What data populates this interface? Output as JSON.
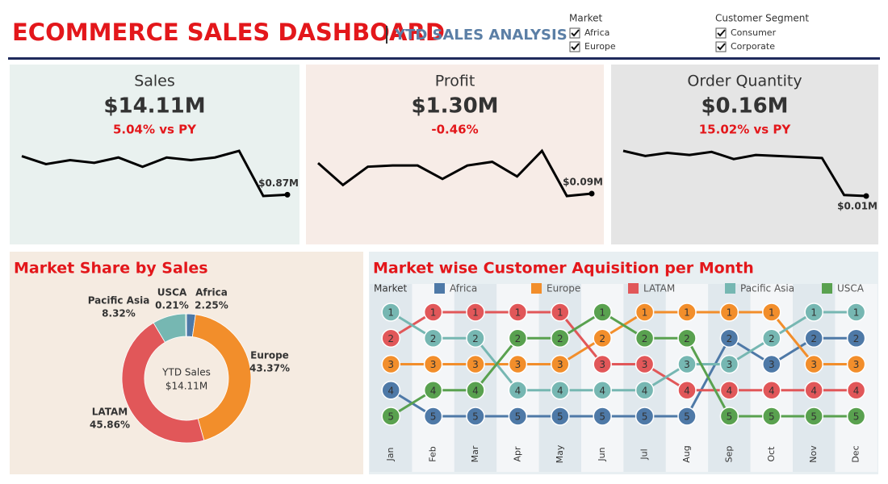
{
  "header": {
    "title": "ECOMMERCE SALES DASHBOARD",
    "subtitle": "YTD SALES ANALYSIS"
  },
  "filters": [
    {
      "label": "Market",
      "options": [
        "Africa",
        "Europe"
      ]
    },
    {
      "label": "Customer Segment",
      "options": [
        "Consumer",
        "Corporate"
      ]
    }
  ],
  "kpis": [
    {
      "title": "Sales",
      "value": "$14.11M",
      "change": "5.04% vs PY"
    },
    {
      "title": "Profit",
      "value": "$1.30M",
      "change": "-0.46%"
    },
    {
      "title": "Order Quantity",
      "value": "$0.16M",
      "change": "15.02% vs PY"
    }
  ],
  "chart_data": [
    {
      "type": "line",
      "color": "#000000",
      "values": [
        1.16,
        1.1,
        1.13,
        1.11,
        1.15,
        1.08,
        1.15,
        1.13,
        1.15,
        1.2,
        0.86,
        0.87
      ],
      "value_labels": [
        null,
        null,
        null,
        null,
        null,
        null,
        null,
        null,
        null,
        null,
        null,
        "$0.87M"
      ]
    },
    {
      "type": "line",
      "color": "#000000",
      "values": [
        0.115,
        0.097,
        0.112,
        0.113,
        0.113,
        0.102,
        0.113,
        0.116,
        0.104,
        0.125,
        0.088,
        0.09
      ],
      "value_labels": [
        null,
        null,
        null,
        null,
        null,
        null,
        null,
        null,
        null,
        null,
        null,
        "$0.09M"
      ]
    },
    {
      "type": "line",
      "color": "#000000",
      "values": [
        0.0145,
        0.014,
        0.0143,
        0.0141,
        0.0144,
        0.0137,
        0.0141,
        0.014,
        0.0139,
        0.0138,
        0.0102,
        0.0101
      ],
      "value_labels": [
        null,
        null,
        null,
        null,
        null,
        null,
        null,
        null,
        null,
        null,
        null,
        "$0.01M"
      ]
    },
    {
      "type": "donut",
      "title": "Market Share by Sales",
      "center_title": "YTD Sales",
      "center_value": "$14.11M",
      "categories": [
        "Africa",
        "Europe",
        "LATAM",
        "Pacific Asia",
        "USCA"
      ],
      "values": [
        2.25,
        43.37,
        45.86,
        8.32,
        0.21
      ],
      "value_labels": [
        "2.25%",
        "43.37%",
        "45.86%",
        "8.32%",
        "0.21%"
      ],
      "colors": [
        "#4e79a7",
        "#f28e2b",
        "#e15759",
        "#76b7b2",
        "#59a14f"
      ]
    },
    {
      "type": "bump",
      "title": "Market wise Customer Aquisition per Month",
      "legend_title": "Market",
      "categories": [
        "Jan",
        "Feb",
        "Mar",
        "Apr",
        "May",
        "Jun",
        "Jul",
        "Aug",
        "Sep",
        "Oct",
        "Nov",
        "Dec"
      ],
      "ylim": [
        5,
        1
      ],
      "series": [
        {
          "name": "Africa",
          "color": "#4e79a7",
          "values": [
            4,
            5,
            5,
            5,
            5,
            5,
            5,
            5,
            2,
            3,
            2,
            2
          ]
        },
        {
          "name": "Europe",
          "color": "#f28e2b",
          "values": [
            3,
            3,
            3,
            3,
            3,
            2,
            1,
            1,
            1,
            1,
            3,
            3
          ]
        },
        {
          "name": "LATAM",
          "color": "#e15759",
          "values": [
            2,
            1,
            1,
            1,
            1,
            3,
            3,
            4,
            4,
            4,
            4,
            4
          ]
        },
        {
          "name": "Pacific Asia",
          "color": "#76b7b2",
          "values": [
            1,
            2,
            2,
            4,
            4,
            4,
            4,
            3,
            3,
            2,
            1,
            1
          ]
        },
        {
          "name": "USCA",
          "color": "#59a14f",
          "values": [
            5,
            4,
            4,
            2,
            2,
            1,
            2,
            2,
            5,
            5,
            5,
            5
          ]
        }
      ]
    }
  ]
}
